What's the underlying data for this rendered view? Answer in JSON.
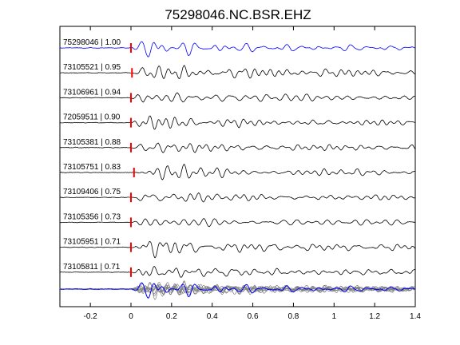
{
  "chart_data": {
    "type": "line",
    "title": "75298046.NC.BSR.EHZ",
    "xlabel": "",
    "ylabel": "",
    "xlim": [
      -0.35,
      1.4
    ],
    "x_ticks": [
      -0.2,
      0,
      0.2,
      0.4,
      0.6,
      0.8,
      1,
      1.2,
      1.4
    ],
    "x_tick_labels": [
      "-0.2",
      "0",
      "0.2",
      "0.4",
      "0.6",
      "0.8",
      "1",
      "1.2",
      "1.4"
    ],
    "grid": false,
    "legend": "none",
    "description_of_marks": "Stacked normalized seismogram waveforms; red tick marks the pick time on each trace; bottom row overlays all traces.",
    "colors": {
      "reference_trace": "#0000ff",
      "similar_trace": "#000000",
      "pick_marker": "#ff0000",
      "overlay_trace": "#808080"
    },
    "traces": [
      {
        "label": "75298046 | 1.00",
        "event_id": "75298046",
        "correlation": 1.0,
        "pick_time": 0.0,
        "reference": true
      },
      {
        "label": "73105521 | 0.95",
        "event_id": "73105521",
        "correlation": 0.95,
        "pick_time": 0.005
      },
      {
        "label": "73106961 | 0.94",
        "event_id": "73106961",
        "correlation": 0.94,
        "pick_time": 0.0
      },
      {
        "label": "72059511 | 0.90",
        "event_id": "72059511",
        "correlation": 0.9,
        "pick_time": 0.0
      },
      {
        "label": "73105381 | 0.88",
        "event_id": "73105381",
        "correlation": 0.88,
        "pick_time": 0.0
      },
      {
        "label": "73105751 | 0.83",
        "event_id": "73105751",
        "correlation": 0.83,
        "pick_time": 0.015
      },
      {
        "label": "73109406 | 0.75",
        "event_id": "73109406",
        "correlation": 0.75,
        "pick_time": 0.0
      },
      {
        "label": "73105356 | 0.73",
        "event_id": "73105356",
        "correlation": 0.73,
        "pick_time": 0.0
      },
      {
        "label": "73105951 | 0.71",
        "event_id": "73105951",
        "correlation": 0.71,
        "pick_time": 0.0
      },
      {
        "label": "73105811 | 0.71",
        "event_id": "73105811",
        "correlation": 0.71,
        "pick_time": 0.0
      }
    ]
  }
}
